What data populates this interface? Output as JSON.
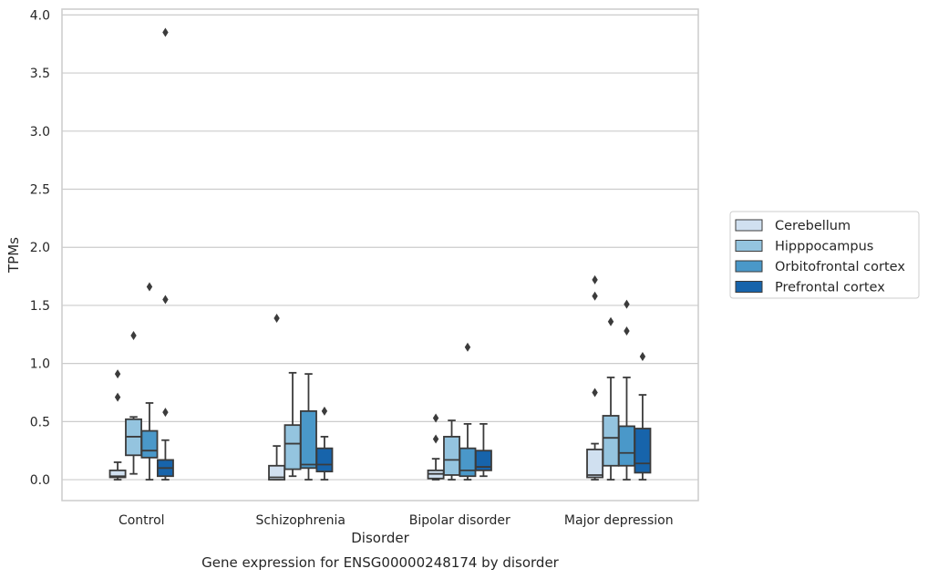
{
  "chart_data": {
    "type": "box",
    "title": "Gene expression for ENSG00000248174 by disorder",
    "xlabel": "Disorder",
    "ylabel": "TPMs",
    "ylim": [
      -0.18,
      4.05
    ],
    "yticks": [
      "0.0",
      "0.5",
      "1.0",
      "1.5",
      "2.0",
      "2.5",
      "3.0",
      "3.5",
      "4.0"
    ],
    "grid": "horizontal",
    "legend_position": "right",
    "categories": [
      "Control",
      "Schizophrenia",
      "Bipolar disorder",
      "Major depression"
    ],
    "series": [
      {
        "name": "Cerebellum",
        "color": "#d0e0f0",
        "boxes": [
          {
            "whisker_low": 0.0,
            "q1": 0.02,
            "median": 0.03,
            "q3": 0.08,
            "whisker_high": 0.15,
            "outliers": [
              0.71,
              0.91
            ]
          },
          {
            "whisker_low": 0.0,
            "q1": 0.0,
            "median": 0.02,
            "q3": 0.12,
            "whisker_high": 0.29,
            "outliers": [
              1.39
            ]
          },
          {
            "whisker_low": 0.0,
            "q1": 0.01,
            "median": 0.05,
            "q3": 0.08,
            "whisker_high": 0.18,
            "outliers": [
              0.35,
              0.53
            ]
          },
          {
            "whisker_low": 0.0,
            "q1": 0.02,
            "median": 0.04,
            "q3": 0.26,
            "whisker_high": 0.31,
            "outliers": [
              0.75,
              1.58,
              1.72
            ]
          }
        ]
      },
      {
        "name": "Hipppocampus",
        "color": "#94c4df",
        "boxes": [
          {
            "whisker_low": 0.05,
            "q1": 0.21,
            "median": 0.37,
            "q3": 0.52,
            "whisker_high": 0.54,
            "outliers": [
              1.24
            ]
          },
          {
            "whisker_low": 0.03,
            "q1": 0.09,
            "median": 0.31,
            "q3": 0.47,
            "whisker_high": 0.92,
            "outliers": []
          },
          {
            "whisker_low": 0.0,
            "q1": 0.04,
            "median": 0.17,
            "q3": 0.37,
            "whisker_high": 0.51,
            "outliers": []
          },
          {
            "whisker_low": 0.0,
            "q1": 0.12,
            "median": 0.36,
            "q3": 0.55,
            "whisker_high": 0.88,
            "outliers": [
              1.36
            ]
          }
        ]
      },
      {
        "name": "Orbitofrontal cortex",
        "color": "#4a98c9",
        "boxes": [
          {
            "whisker_low": 0.0,
            "q1": 0.19,
            "median": 0.25,
            "q3": 0.42,
            "whisker_high": 0.66,
            "outliers": [
              1.66
            ]
          },
          {
            "whisker_low": 0.0,
            "q1": 0.1,
            "median": 0.13,
            "q3": 0.59,
            "whisker_high": 0.91,
            "outliers": []
          },
          {
            "whisker_low": 0.0,
            "q1": 0.03,
            "median": 0.08,
            "q3": 0.27,
            "whisker_high": 0.48,
            "outliers": [
              1.14
            ]
          },
          {
            "whisker_low": 0.0,
            "q1": 0.12,
            "median": 0.23,
            "q3": 0.46,
            "whisker_high": 0.88,
            "outliers": [
              1.28,
              1.51
            ]
          }
        ]
      },
      {
        "name": "Prefrontal cortex",
        "color": "#1764ab",
        "boxes": [
          {
            "whisker_low": 0.0,
            "q1": 0.03,
            "median": 0.1,
            "q3": 0.17,
            "whisker_high": 0.34,
            "outliers": [
              0.58,
              1.55,
              3.85
            ]
          },
          {
            "whisker_low": 0.0,
            "q1": 0.07,
            "median": 0.13,
            "q3": 0.27,
            "whisker_high": 0.37,
            "outliers": [
              0.59
            ]
          },
          {
            "whisker_low": 0.03,
            "q1": 0.08,
            "median": 0.11,
            "q3": 0.25,
            "whisker_high": 0.48,
            "outliers": []
          },
          {
            "whisker_low": 0.0,
            "q1": 0.06,
            "median": 0.14,
            "q3": 0.44,
            "whisker_high": 0.73,
            "outliers": [
              1.06
            ]
          }
        ]
      }
    ]
  }
}
